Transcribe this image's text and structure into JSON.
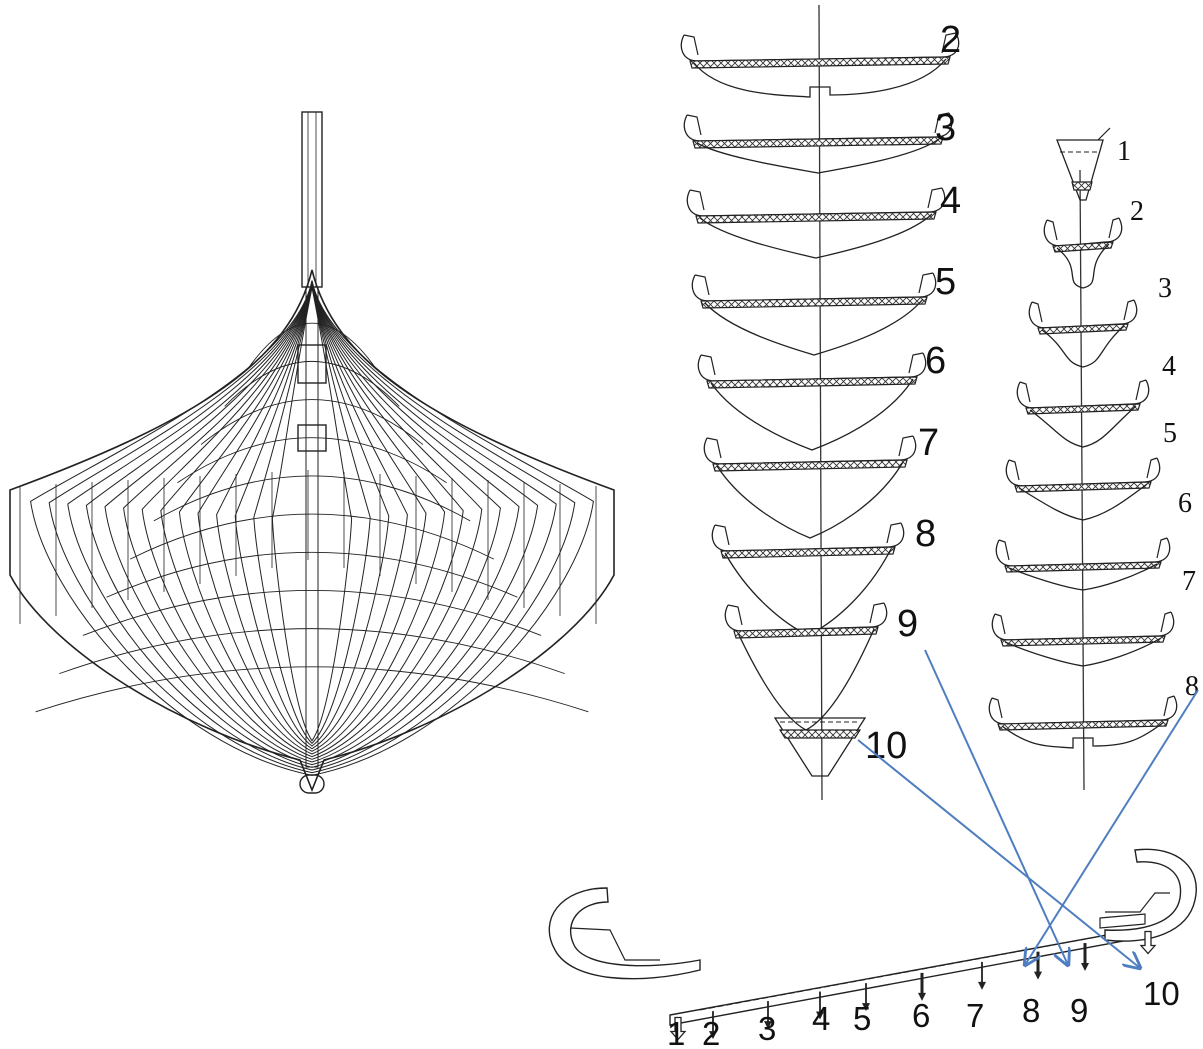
{
  "colors": {
    "ink": "#222222",
    "arrow": "#4f7ec0",
    "background": "#ffffff"
  },
  "hull_plan": {
    "icon": "ship-hull-lines-plan"
  },
  "left_sections": {
    "labels": [
      "2",
      "3",
      "4",
      "5",
      "6",
      "7",
      "8",
      "9",
      "10"
    ]
  },
  "right_sections": {
    "labels": [
      "1",
      "2",
      "3",
      "4",
      "5",
      "6",
      "7",
      "8"
    ]
  },
  "keel": {
    "labels": [
      "1",
      "2",
      "3",
      "4",
      "5",
      "6",
      "7",
      "8",
      "9",
      "10"
    ]
  }
}
